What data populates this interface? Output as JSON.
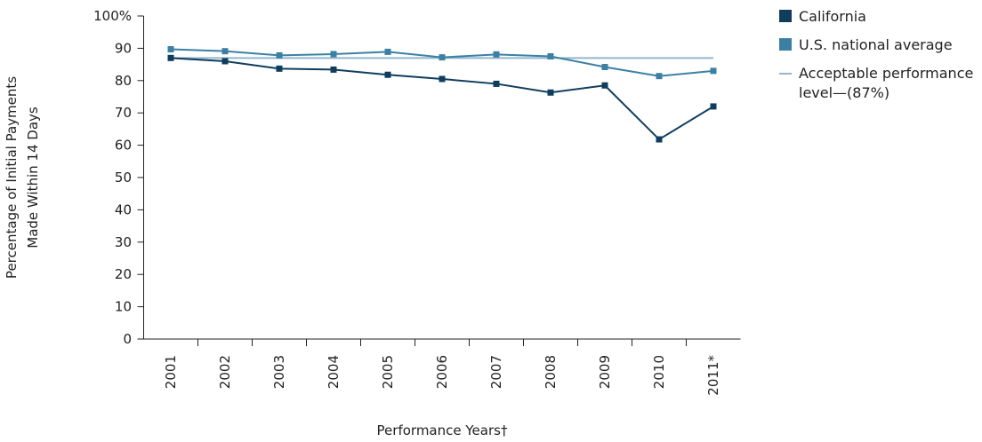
{
  "chart_data": {
    "type": "line",
    "categories": [
      "2001",
      "2002",
      "2003",
      "2004",
      "2005",
      "2006",
      "2007",
      "2008",
      "2009",
      "2010",
      "2011*"
    ],
    "series": [
      {
        "name": "California",
        "color": "#0f3d5e",
        "marker": "square",
        "values": [
          87,
          86,
          83.7,
          83.4,
          81.8,
          80.5,
          79,
          76.3,
          78.5,
          61.8,
          72
        ]
      },
      {
        "name": "U.S. national average",
        "color": "#3b80a3",
        "marker": "square",
        "values": [
          89.7,
          89.1,
          87.8,
          88.2,
          88.9,
          87.2,
          88.1,
          87.5,
          84.2,
          81.4,
          83
        ]
      },
      {
        "name": "Acceptable performance level—(87%)",
        "color": "#92b6cf",
        "marker": "none",
        "values": [
          87,
          87,
          87,
          87,
          87,
          87,
          87,
          87,
          87,
          87,
          87
        ]
      }
    ],
    "ylim": [
      0,
      100
    ],
    "yticks": [
      0,
      10,
      20,
      30,
      40,
      50,
      60,
      70,
      80,
      90,
      {
        "value": 100,
        "label": "100%"
      }
    ],
    "y_label": [
      "Percentage of Initial Payments",
      "Made Within 14 Days"
    ],
    "x_label": "Performance Years†"
  }
}
